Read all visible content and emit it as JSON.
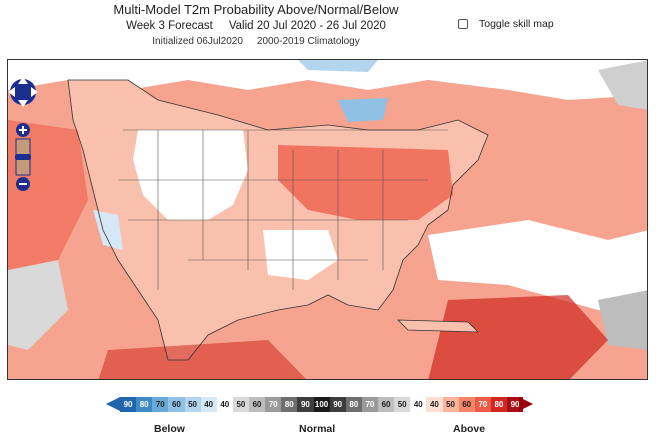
{
  "header": {
    "title": "Multi-Model T2m Probability Above/Normal/Below",
    "forecast_label": "Week 3 Forecast",
    "valid_label": "Valid 20 Jul 2020 - 26 Jul 2020",
    "initialized_label": "Initialized 06Jul2020",
    "climatology_label": "2000-2019 Climatology"
  },
  "toggle": {
    "label": "Toggle skill map",
    "checked": false
  },
  "map": {
    "nav_icons": [
      "pan-up-icon",
      "pan-left-icon",
      "pan-right-icon",
      "pan-down-icon",
      "zoom-in-icon",
      "zoom-out-icon"
    ],
    "water_color": "#f6a48f",
    "land_color": "#f9c1ad"
  },
  "legend": {
    "cells": [
      {
        "label": "90",
        "color": "#2166ac",
        "text": "#ffffff"
      },
      {
        "label": "80",
        "color": "#3f89c4",
        "text": "#ffffff"
      },
      {
        "label": "70",
        "color": "#67a9d9",
        "text": "#222222"
      },
      {
        "label": "60",
        "color": "#8fc1e5",
        "text": "#222222"
      },
      {
        "label": "50",
        "color": "#b3d5ee",
        "text": "#222222"
      },
      {
        "label": "40",
        "color": "#d6e8f5",
        "text": "#222222"
      },
      {
        "label": "40",
        "color": "#ffffff",
        "text": "#222222"
      },
      {
        "label": "50",
        "color": "#d9d9d9",
        "text": "#222222"
      },
      {
        "label": "60",
        "color": "#bdbdbd",
        "text": "#222222"
      },
      {
        "label": "70",
        "color": "#9a9a9a",
        "text": "#ffffff"
      },
      {
        "label": "80",
        "color": "#6e6e6e",
        "text": "#ffffff"
      },
      {
        "label": "90",
        "color": "#3d3d3d",
        "text": "#ffffff"
      },
      {
        "label": "100",
        "color": "#1a1a1a",
        "text": "#ffffff"
      },
      {
        "label": "90",
        "color": "#3d3d3d",
        "text": "#ffffff"
      },
      {
        "label": "80",
        "color": "#6e6e6e",
        "text": "#ffffff"
      },
      {
        "label": "70",
        "color": "#9a9a9a",
        "text": "#ffffff"
      },
      {
        "label": "60",
        "color": "#bdbdbd",
        "text": "#222222"
      },
      {
        "label": "50",
        "color": "#d9d9d9",
        "text": "#222222"
      },
      {
        "label": "40",
        "color": "#ffffff",
        "text": "#222222"
      },
      {
        "label": "40",
        "color": "#fde0d2",
        "text": "#222222"
      },
      {
        "label": "50",
        "color": "#fbb59c",
        "text": "#222222"
      },
      {
        "label": "60",
        "color": "#f6846a",
        "text": "#222222"
      },
      {
        "label": "70",
        "color": "#ec5a46",
        "text": "#ffffff"
      },
      {
        "label": "80",
        "color": "#d0281f",
        "text": "#ffffff"
      },
      {
        "label": "90",
        "color": "#a50f15",
        "text": "#ffffff"
      }
    ],
    "below_label": "Below",
    "normal_label": "Normal",
    "above_label": "Above"
  }
}
